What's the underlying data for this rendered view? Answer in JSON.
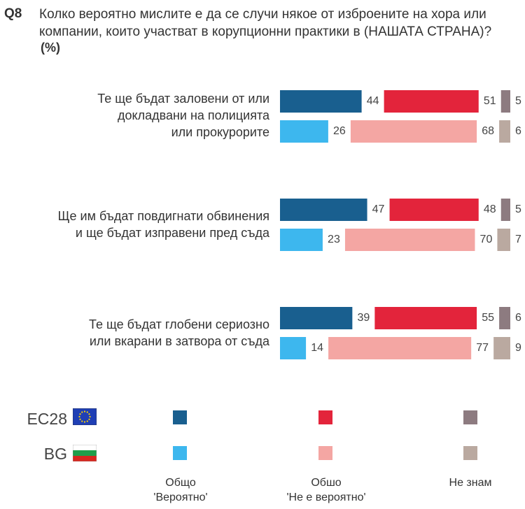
{
  "question": {
    "number": "Q8",
    "text": "Колко вероятно мислите е да се случи някое от изброените на хора или компании, които участват в корупционни практики в (НАШАТА СТРАНА)?",
    "unit": "(%)"
  },
  "legend": {
    "rows": [
      {
        "code": "EC28",
        "flag": "eu-flag"
      },
      {
        "code": "BG",
        "flag": "bg-flag"
      }
    ],
    "columns": [
      {
        "line1": "Общо",
        "line2": "'Вероятно'"
      },
      {
        "line1": "Обшо",
        "line2": "'Не е вероятно'"
      },
      {
        "line1": "Не знам",
        "line2": ""
      }
    ]
  },
  "colors": {
    "eu_likely": "#195f8f",
    "eu_unlikely": "#e3243b",
    "eu_dk": "#8d7b80",
    "bg_likely": "#3db7ee",
    "bg_unlikely": "#f4a6a3",
    "bg_dk": "#baa9a0",
    "eu_flag_blue": "#1f3fb5",
    "eu_flag_star": "#ffd400",
    "bg_flag_white": "#ffffff",
    "bg_flag_green": "#1f9e4a",
    "bg_flag_red": "#d7261e"
  },
  "chart_data": {
    "type": "bar",
    "orientation": "horizontal",
    "stacked": false,
    "unit": "%",
    "categories": [
      {
        "line1": "Те ще бъдат заловени от или",
        "line2": "докладвани на полицията",
        "line3": "или прокурорите"
      },
      {
        "line1": "Ще им бъдат повдигнати обвинения",
        "line2": "и ще бъдат изправени пред съда",
        "line3": ""
      },
      {
        "line1": "Те ще бъдат глобени сериозно",
        "line2": "или вкарани в затвора от съда",
        "line3": ""
      }
    ],
    "series": [
      {
        "name": "EC28",
        "likely": [
          44,
          47,
          39
        ],
        "unlikely": [
          51,
          48,
          55
        ],
        "dont_know": [
          5,
          5,
          6
        ]
      },
      {
        "name": "BG",
        "likely": [
          26,
          23,
          14
        ],
        "unlikely": [
          68,
          70,
          77
        ],
        "dont_know": [
          6,
          7,
          9
        ]
      }
    ]
  }
}
